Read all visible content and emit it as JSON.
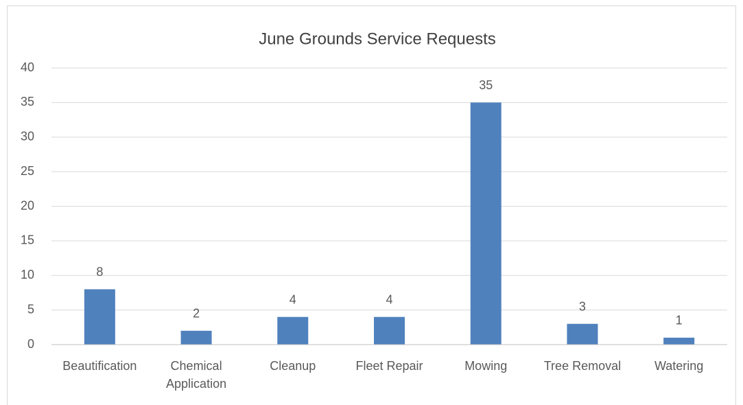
{
  "chart_data": {
    "type": "bar",
    "title": "June Grounds Service Requests",
    "categories": [
      "Beautification",
      "Chemical Application",
      "Cleanup",
      "Fleet Repair",
      "Mowing",
      "Tree Removal",
      "Watering"
    ],
    "values": [
      8,
      2,
      4,
      4,
      35,
      3,
      1
    ],
    "color": "#4f81bd",
    "ylim": [
      0,
      40
    ],
    "yticks": [
      0,
      5,
      10,
      15,
      20,
      25,
      30,
      35,
      40
    ],
    "grid": true
  }
}
